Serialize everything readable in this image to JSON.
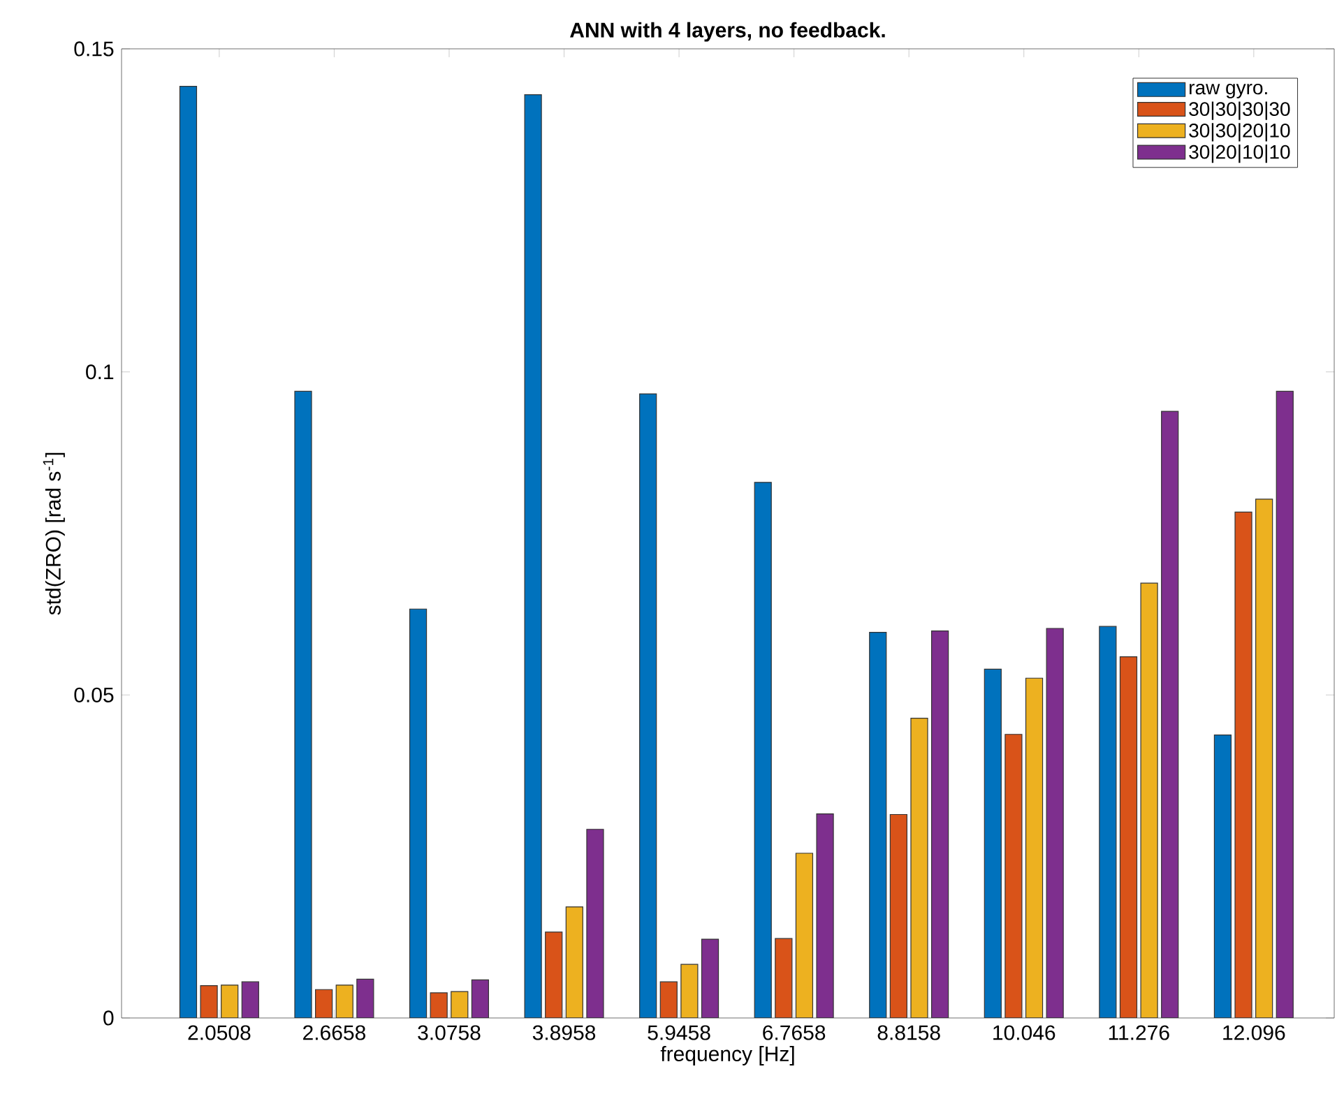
{
  "chart_data": {
    "type": "bar",
    "title": "ANN with 4 layers, no feedback.",
    "xlabel": "frequency [Hz]",
    "ylabel": "std(ZRO) [rad s$^{-1}$]",
    "categories": [
      "2.0508",
      "2.6658",
      "3.0758",
      "3.8958",
      "5.9458",
      "6.7658",
      "8.8158",
      "10.046",
      "11.276",
      "12.096"
    ],
    "series": [
      {
        "name": "raw gyro.",
        "color": "#0072bd",
        "values": [
          0.1442,
          0.097,
          0.0633,
          0.1429,
          0.0966,
          0.0829,
          0.0597,
          0.054,
          0.0606,
          0.0438
        ]
      },
      {
        "name": "30|30|30|30",
        "color": "#d95319",
        "values": [
          0.005,
          0.0044,
          0.0039,
          0.0133,
          0.0056,
          0.0123,
          0.0315,
          0.0439,
          0.0559,
          0.0783
        ]
      },
      {
        "name": "30|30|20|10",
        "color": "#edb120",
        "values": [
          0.0051,
          0.0051,
          0.0041,
          0.0172,
          0.0083,
          0.0255,
          0.0464,
          0.0526,
          0.0673,
          0.0803
        ]
      },
      {
        "name": "30|20|10|10",
        "color": "#7e2f8e",
        "values": [
          0.0056,
          0.006,
          0.0059,
          0.0292,
          0.0122,
          0.0316,
          0.0599,
          0.0603,
          0.0939,
          0.097
        ]
      }
    ],
    "ylim": [
      0,
      0.15
    ],
    "yticks": [
      0,
      0.05,
      0.1,
      0.15
    ],
    "legend": "top right"
  }
}
